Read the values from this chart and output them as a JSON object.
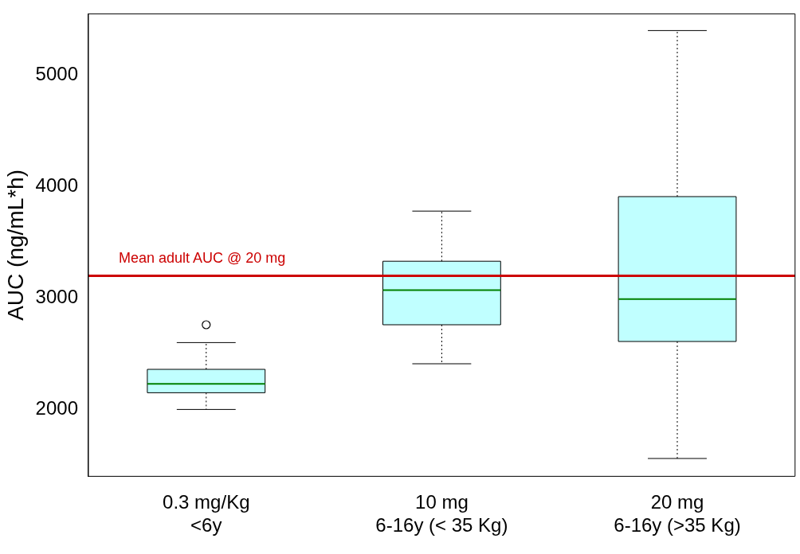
{
  "chart_data": {
    "type": "box",
    "ylabel": "AUC (ng/mL*h)",
    "categories": [
      "0.3 mg/Kg\n<6y",
      "10 mg\n6-16y (< 35 Kg)",
      "20 mg\n6-16y (>35 Kg)"
    ],
    "series": [
      {
        "color": "#c0ffff",
        "boxes": [
          {
            "low": 2000,
            "q1": 2150,
            "median": 2230,
            "q3": 2360,
            "high": 2600,
            "outliers": [
              2760
            ]
          },
          {
            "low": 2410,
            "q1": 2760,
            "median": 3070,
            "q3": 3330,
            "high": 3780
          },
          {
            "low": 1560,
            "q1": 2610,
            "median": 2990,
            "q3": 3910,
            "high": 5400
          }
        ]
      }
    ],
    "ylim": [
      1400,
      5550
    ],
    "yticks": [
      2000,
      3000,
      4000,
      5000
    ],
    "grid": false,
    "legend": false,
    "ref_lines": [
      {
        "axis": "y",
        "value": 3200,
        "label": "Mean adult AUC @ 20 mg",
        "color": "#cc0000"
      }
    ]
  }
}
